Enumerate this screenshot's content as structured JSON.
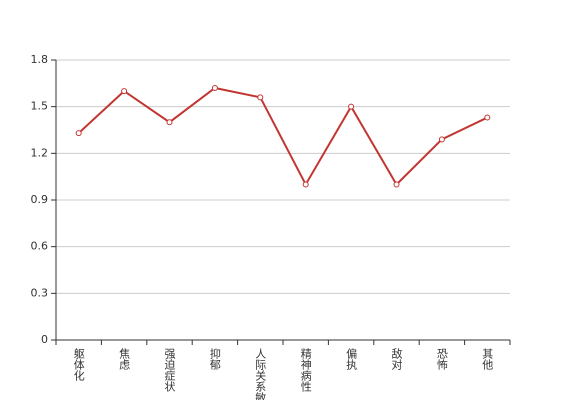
{
  "chart_data": {
    "type": "line",
    "categories": [
      "躯体化",
      "焦虑",
      "强迫症状",
      "抑郁",
      "人际关系敏感",
      "精神病性",
      "偏执",
      "敌对",
      "恐怖",
      "其他"
    ],
    "series": [
      {
        "values": [
          1.33,
          1.6,
          1.4,
          1.62,
          1.56,
          1.0,
          1.5,
          1.0,
          1.29,
          1.43
        ],
        "color": "#c23531"
      }
    ],
    "ylim": [
      0,
      1.8
    ],
    "yticks": [
      0,
      0.3,
      0.6,
      0.9,
      1.2,
      1.5,
      1.8
    ],
    "grid": true
  }
}
